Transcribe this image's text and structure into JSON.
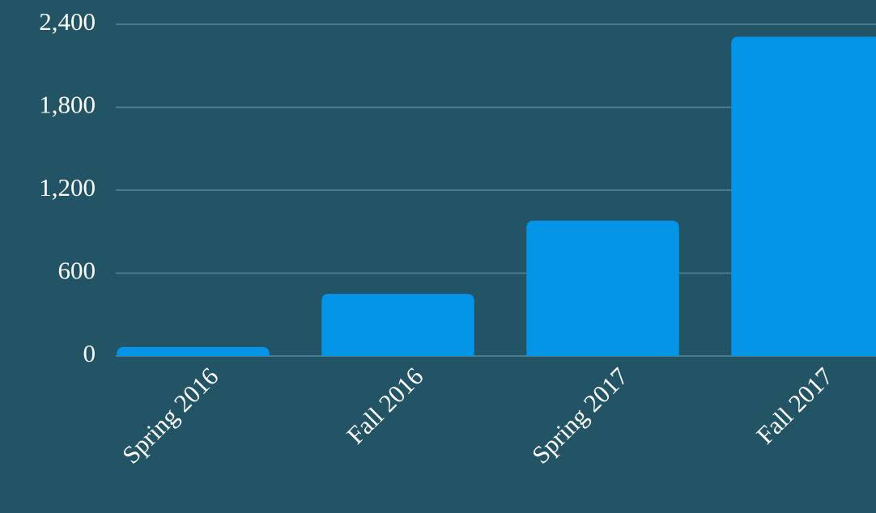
{
  "chart_data": {
    "type": "bar",
    "categories": [
      "Spring 2016",
      "Fall 2016",
      "Spring 2017",
      "Fall 2017"
    ],
    "values": [
      65,
      450,
      980,
      2310
    ],
    "color": "#0394e8",
    "ylim": [
      0,
      2400
    ],
    "yticks": [
      0,
      600,
      {
        "value": 1200,
        "label": "1,200"
      },
      {
        "value": 1800,
        "label": "1,800"
      },
      {
        "value": 2400,
        "label": "2,400"
      }
    ],
    "grid": true
  }
}
